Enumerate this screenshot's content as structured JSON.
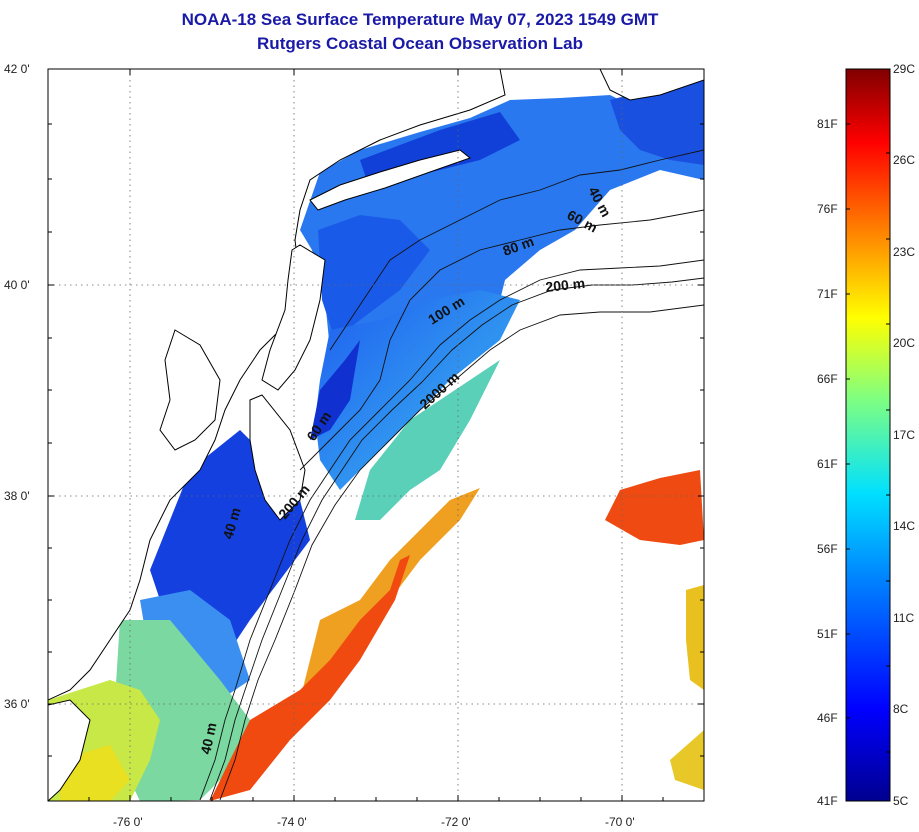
{
  "title": "NOAA-18 Sea Surface Temperature May 07, 2023 1549 GMT",
  "subtitle": "Rutgers Coastal Ocean Observation Lab",
  "map": {
    "lat_ticks": [
      "42 0'",
      "40 0'",
      "38 0'",
      "36 0'"
    ],
    "lon_ticks": [
      "-76 0'",
      "-74 0'",
      "-72 0'",
      "-70 0'"
    ],
    "grid": "dotted",
    "contour_labels": [
      "40 m",
      "60 m",
      "80 m",
      "100 m",
      "200 m",
      "2000 m",
      "60 m",
      "40 m",
      "200 m",
      "40 m"
    ]
  },
  "colorbar": {
    "celsius_labels": [
      "29C",
      "26C",
      "23C",
      "20C",
      "17C",
      "14C",
      "11C",
      "8C",
      "5C"
    ],
    "fahrenheit_labels": [
      "81F",
      "76F",
      "71F",
      "66F",
      "61F",
      "56F",
      "51F",
      "46F",
      "41F"
    ],
    "colors": [
      "#00008f",
      "#0000ff",
      "#0080ff",
      "#00ffff",
      "#80ff80",
      "#ffff00",
      "#ff8000",
      "#ff0000",
      "#800000"
    ]
  }
}
